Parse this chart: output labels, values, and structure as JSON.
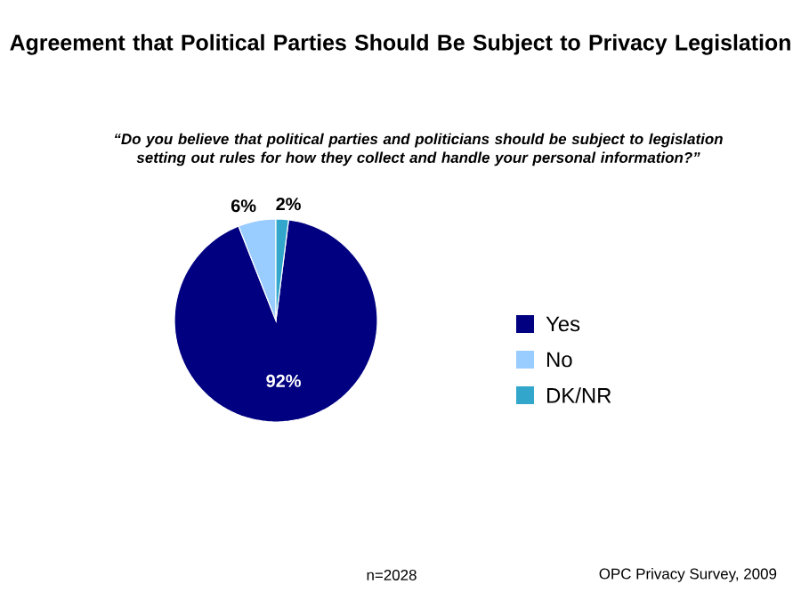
{
  "chart_data": {
    "type": "pie",
    "title": "Agreement that Political Parties Should Be Subject to Privacy Legislation",
    "subtitle": "“Do you believe that political parties and politicians should be subject to legislation setting out rules for how they collect and handle your personal information?”",
    "categories": [
      "Yes",
      "No",
      "DK/NR"
    ],
    "values": [
      92,
      6,
      2
    ],
    "colors": [
      "#000080",
      "#99ccff",
      "#33a6cc"
    ],
    "data_labels": true,
    "value_labels": [
      "92%",
      "6%",
      "2%"
    ],
    "legend": "right",
    "annotations": [
      "n=2028",
      "OPC Privacy Survey, 2009"
    ]
  }
}
